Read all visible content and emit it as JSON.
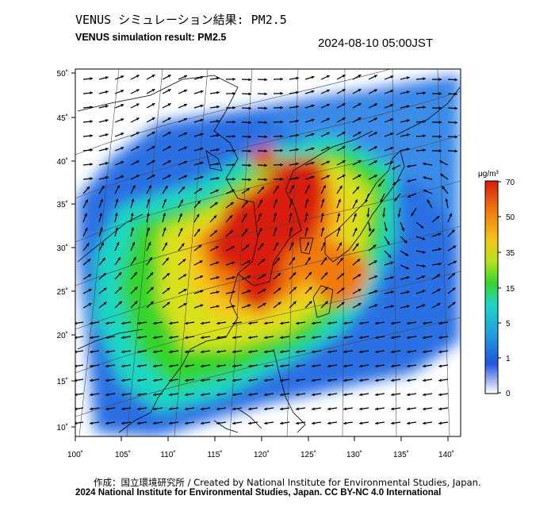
{
  "header": {
    "title_jp": "VENUS シミュレーション結果: PM2.5",
    "title_en": "VENUS simulation result: PM2.5",
    "datetime": "2024-08-10 05:00JST"
  },
  "map": {
    "lat_labels": [
      "50˚",
      "45˚",
      "40˚",
      "35˚",
      "30˚",
      "25˚",
      "20˚",
      "15˚",
      "10˚"
    ],
    "lon_labels": [
      "100˚",
      "105˚",
      "110˚",
      "115˚",
      "120˚",
      "125˚",
      "130˚",
      "135˚",
      "140˚"
    ]
  },
  "colorbar": {
    "unit": "μg/m³",
    "ticks": [
      "70",
      "50",
      "35",
      "15",
      "5",
      "1",
      "0"
    ],
    "colors": [
      "#ffffff",
      "#2255dd",
      "#1ea0e0",
      "#1ed7c3",
      "#36d42a",
      "#b5e21c",
      "#f5c71a",
      "#f07a10",
      "#d81e0e"
    ]
  },
  "footer": {
    "credit_line1": "作成：国立環境研究所 / Created by National Institute for Environmental Studies, Japan.",
    "credit_line2": "2024 National Institute for Environmental Studies, Japan. CC BY-NC 4.0 International"
  }
}
